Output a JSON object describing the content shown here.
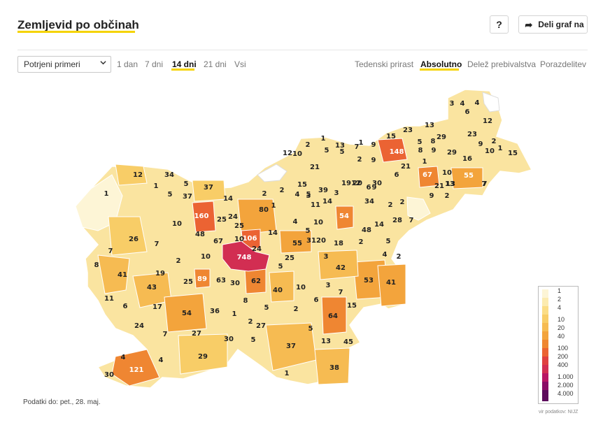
{
  "header": {
    "title": "Zemljevid po občinah",
    "help_label": "?",
    "share_label": "Deli graf na"
  },
  "controls": {
    "metric_select": "Potrjeni primeri",
    "ranges": [
      "1 dan",
      "7 dni",
      "14 dni",
      "21 dni",
      "Vsi"
    ],
    "active_range": "14 dni",
    "modes": [
      "Tedenski prirast",
      "Absolutno",
      "Delež prebivalstva",
      "Porazdelitev"
    ],
    "active_mode": "Absolutno"
  },
  "map_labels": [
    "3",
    "4",
    "4",
    "6",
    "13",
    "12",
    "15",
    "23",
    "5",
    "29",
    "23",
    "8",
    "9",
    "2",
    "1",
    "9",
    "10",
    "1",
    "12",
    "15",
    "148",
    "8",
    "9",
    "29",
    "16",
    "5",
    "2",
    "1",
    "5",
    "13",
    "7",
    "9",
    "2",
    "21",
    "10",
    "12",
    "10",
    "1",
    "21",
    "13",
    "34",
    "1",
    "7",
    "15",
    "9",
    "19",
    "20",
    "30",
    "6",
    "6",
    "67",
    "21",
    "13",
    "55",
    "7",
    "5",
    "37",
    "39",
    "3",
    "14",
    "1",
    "5",
    "2",
    "34",
    "2",
    "12",
    "5",
    "2",
    "80",
    "4",
    "3",
    "11",
    "2",
    "9",
    "2",
    "1",
    "37",
    "14",
    "160",
    "25",
    "24",
    "54",
    "10",
    "48",
    "14",
    "28",
    "7",
    "4",
    "5",
    "26",
    "7",
    "10",
    "25",
    "14",
    "48",
    "67",
    "10",
    "106",
    "24",
    "55",
    "31",
    "20",
    "18",
    "2",
    "5",
    "7",
    "8",
    "2",
    "10",
    "748",
    "25",
    "3",
    "4",
    "2",
    "41",
    "19",
    "89",
    "63",
    "30",
    "62",
    "5",
    "42",
    "53",
    "41",
    "11",
    "43",
    "25",
    "40",
    "10",
    "3",
    "7",
    "6",
    "17",
    "54",
    "36",
    "8",
    "5",
    "2",
    "6",
    "15",
    "24",
    "1",
    "2",
    "27",
    "64",
    "7",
    "27",
    "30",
    "5",
    "37",
    "5",
    "13",
    "45",
    "29",
    "4",
    "4",
    "121",
    "30",
    "38",
    "1"
  ],
  "legend": {
    "colors": [
      "#fdf5d6",
      "#fcebb0",
      "#fbdd86",
      "#f8cd67",
      "#f6bb52",
      "#f3a43c",
      "#ef8632",
      "#eb6333",
      "#e04040",
      "#d22e52",
      "#b81664",
      "#8a0c66",
      "#5c0b5c"
    ],
    "labels": [
      "1",
      "2",
      "4",
      "10",
      "20",
      "40",
      "100",
      "200",
      "400",
      "1.000",
      "2.000",
      "4.000"
    ]
  },
  "footer": {
    "data_note": "Podatki do: pet., 28. maj.",
    "source": "vir podatkov: NIJZ"
  }
}
